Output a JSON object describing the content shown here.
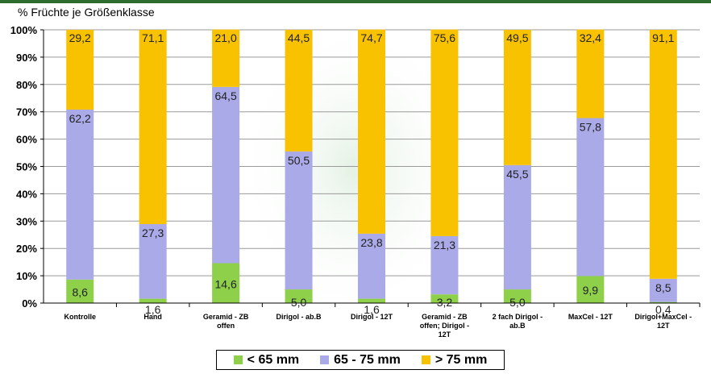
{
  "chart_data": {
    "type": "bar",
    "stacked": true,
    "ylabel": "% Früchte je Größenklasse",
    "ylim": [
      0,
      100
    ],
    "yticks": [
      "0%",
      "10%",
      "20%",
      "30%",
      "40%",
      "50%",
      "60%",
      "70%",
      "80%",
      "90%",
      "100%"
    ],
    "categories": [
      [
        "Kontrolle"
      ],
      [
        "Hand"
      ],
      [
        "Geramid - ZB",
        "offen"
      ],
      [
        "Dirigol - ab.B"
      ],
      [
        "Dirigol - 12T"
      ],
      [
        "Geramid - ZB",
        "offen; Dirigol -",
        "12T"
      ],
      [
        "2 fach Dirigol -",
        "ab.B"
      ],
      [
        "MaxCel - 12T"
      ],
      [
        "Dirigol+MaxCel -",
        "12T"
      ]
    ],
    "series": [
      {
        "name": "< 65 mm",
        "color": "#8ed04a",
        "values": [
          8.6,
          1.6,
          14.6,
          5.0,
          1.6,
          3.2,
          5.0,
          9.9,
          0.4
        ],
        "labels": [
          "8,6",
          "1,6",
          "14,6",
          "5,0",
          "1,6",
          "3,2",
          "5,0",
          "9,9",
          "0,4"
        ]
      },
      {
        "name": "65 - 75 mm",
        "color": "#aaaae8",
        "values": [
          62.2,
          27.3,
          64.5,
          50.5,
          23.8,
          21.3,
          45.5,
          57.8,
          8.5
        ],
        "labels": [
          "62,2",
          "27,3",
          "64,5",
          "50,5",
          "23,8",
          "21,3",
          "45,5",
          "57,8",
          "8,5"
        ]
      },
      {
        "name": "> 75 mm",
        "color": "#f8c200",
        "values": [
          29.2,
          71.1,
          21.0,
          44.5,
          74.7,
          75.6,
          49.5,
          32.4,
          91.1
        ],
        "labels": [
          "29,2",
          "71,1",
          "21,0",
          "44,5",
          "74,7",
          "75,6",
          "49,5",
          "32,4",
          "91,1"
        ]
      }
    ],
    "legend_position": "bottom",
    "grid": true
  }
}
